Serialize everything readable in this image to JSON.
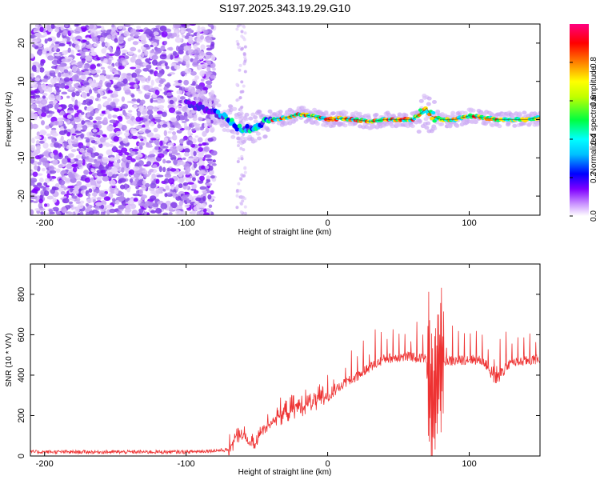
{
  "figure_title": "S197.2025.343.19.29.G10",
  "chart_data": [
    {
      "type": "heatmap",
      "name": "spectrogram",
      "title": "S197.2025.343.19.29.G10",
      "xlabel": "Height of straight line (km)",
      "ylabel": "Frequency (Hz)",
      "xlim": [
        -210,
        150
      ],
      "ylim": [
        -25,
        25
      ],
      "xticks": [
        -200,
        -100,
        0,
        100
      ],
      "yticks": [
        -20,
        -10,
        0,
        10,
        20
      ],
      "xtick_labels": [
        "-200",
        "-100",
        "0",
        "100"
      ],
      "ytick_labels": [
        "-20",
        "-10",
        "0",
        "10",
        "20"
      ],
      "colorbar": {
        "label": "Normalized spectral amplitude",
        "range": [
          0,
          1
        ],
        "ticks": [
          0.0,
          0.2,
          0.4,
          0.6,
          0.8
        ],
        "tick_labels": [
          "0.0",
          "0.2",
          "0.4",
          "0.6",
          "0.8"
        ],
        "colormap": [
          "#ffffff",
          "#7f00ff",
          "#0000ff",
          "#00ffff",
          "#00ff00",
          "#ffff00",
          "#ff7f00",
          "#ff0000",
          "#ff0080"
        ]
      },
      "noise_region": {
        "x_start": -210,
        "x_end": -80,
        "scattered_to": -60
      },
      "carrier_trace": {
        "x": [
          -100,
          -90,
          -80,
          -70,
          -60,
          -50,
          -40,
          -30,
          -20,
          -10,
          0,
          10,
          20,
          30,
          40,
          50,
          60,
          67,
          70,
          73,
          80,
          90,
          100,
          110,
          120,
          130,
          140,
          150
        ],
        "freq_hz": [
          4,
          3.5,
          2,
          0,
          -3,
          -1.5,
          0,
          0.5,
          1.5,
          0.8,
          0,
          0.3,
          0,
          -0.5,
          0,
          0,
          0,
          2,
          3,
          1,
          0,
          0,
          1,
          0.5,
          0,
          0,
          0,
          0.5
        ]
      }
    },
    {
      "type": "line",
      "name": "snr",
      "xlabel": "Height of straight line (km)",
      "ylabel": "SNR (10 * V/V)",
      "xlim": [
        -210,
        150
      ],
      "ylim": [
        0,
        950
      ],
      "xticks": [
        -200,
        -100,
        0,
        100
      ],
      "yticks": [
        0,
        200,
        400,
        600,
        800
      ],
      "xtick_labels": [
        "-200",
        "-100",
        "0",
        "100"
      ],
      "ytick_labels": [
        "0",
        "200",
        "400",
        "600",
        "800"
      ],
      "color": "#ee3333",
      "series_envelope": {
        "x": [
          -210,
          -150,
          -100,
          -70,
          -62,
          -55,
          -52,
          -45,
          -35,
          -20,
          -10,
          0,
          10,
          20,
          30,
          40,
          50,
          60,
          70,
          74,
          76,
          78,
          80,
          85,
          90,
          100,
          110,
          115,
          120,
          130,
          140,
          150
        ],
        "y": [
          20,
          20,
          20,
          30,
          110,
          60,
          40,
          140,
          190,
          240,
          260,
          290,
          350,
          390,
          440,
          480,
          490,
          490,
          480,
          250,
          300,
          480,
          460,
          470,
          470,
          480,
          470,
          420,
          430,
          460,
          470,
          480
        ]
      }
    }
  ]
}
